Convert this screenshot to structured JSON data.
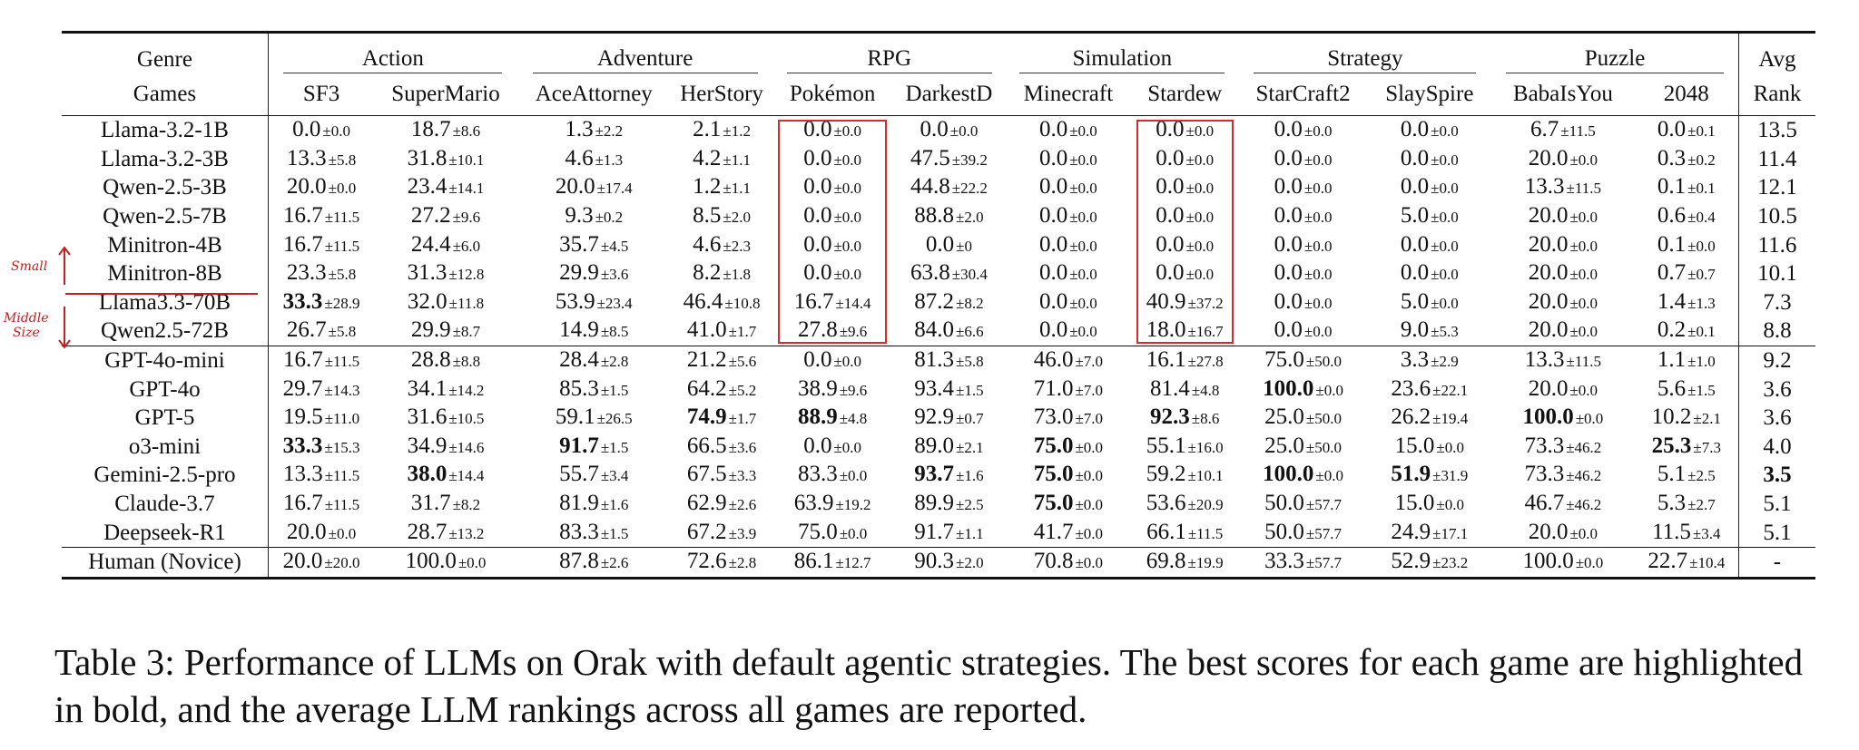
{
  "header": {
    "genre_label": "Genre",
    "games_label": "Games",
    "avg_label": "Avg",
    "rank_label": "Rank",
    "genres": [
      "Action",
      "Adventure",
      "RPG",
      "Simulation",
      "Strategy",
      "Puzzle"
    ],
    "games": [
      "SF3",
      "SuperMario",
      "AceAttorney",
      "HerStory",
      "Pokémon",
      "DarkestD",
      "Minecraft",
      "Stardew",
      "StarCraft2",
      "SlaySpire",
      "BabaIsYou",
      "2048"
    ]
  },
  "groups": [
    {
      "rows": [
        {
          "model": "Llama-3.2-1B",
          "cells": [
            [
              "0.0",
              "±0.0"
            ],
            [
              "18.7",
              "±8.6"
            ],
            [
              "1.3",
              "±2.2"
            ],
            [
              "2.1",
              "±1.2"
            ],
            [
              "0.0",
              "±0.0"
            ],
            [
              "0.0",
              "±0.0"
            ],
            [
              "0.0",
              "±0.0"
            ],
            [
              "0.0",
              "±0.0"
            ],
            [
              "0.0",
              "±0.0"
            ],
            [
              "0.0",
              "±0.0"
            ],
            [
              "6.7",
              "±11.5"
            ],
            [
              "0.0",
              "±0.1"
            ]
          ],
          "rank": "13.5"
        },
        {
          "model": "Llama-3.2-3B",
          "cells": [
            [
              "13.3",
              "±5.8"
            ],
            [
              "31.8",
              "±10.1"
            ],
            [
              "4.6",
              "±1.3"
            ],
            [
              "4.2",
              "±1.1"
            ],
            [
              "0.0",
              "±0.0"
            ],
            [
              "47.5",
              "±39.2"
            ],
            [
              "0.0",
              "±0.0"
            ],
            [
              "0.0",
              "±0.0"
            ],
            [
              "0.0",
              "±0.0"
            ],
            [
              "0.0",
              "±0.0"
            ],
            [
              "20.0",
              "±0.0"
            ],
            [
              "0.3",
              "±0.2"
            ]
          ],
          "rank": "11.4"
        },
        {
          "model": "Qwen-2.5-3B",
          "cells": [
            [
              "20.0",
              "±0.0"
            ],
            [
              "23.4",
              "±14.1"
            ],
            [
              "20.0",
              "±17.4"
            ],
            [
              "1.2",
              "±1.1"
            ],
            [
              "0.0",
              "±0.0"
            ],
            [
              "44.8",
              "±22.2"
            ],
            [
              "0.0",
              "±0.0"
            ],
            [
              "0.0",
              "±0.0"
            ],
            [
              "0.0",
              "±0.0"
            ],
            [
              "0.0",
              "±0.0"
            ],
            [
              "13.3",
              "±11.5"
            ],
            [
              "0.1",
              "±0.1"
            ]
          ],
          "rank": "12.1"
        },
        {
          "model": "Qwen-2.5-7B",
          "cells": [
            [
              "16.7",
              "±11.5"
            ],
            [
              "27.2",
              "±9.6"
            ],
            [
              "9.3",
              "±0.2"
            ],
            [
              "8.5",
              "±2.0"
            ],
            [
              "0.0",
              "±0.0"
            ],
            [
              "88.8",
              "±2.0"
            ],
            [
              "0.0",
              "±0.0"
            ],
            [
              "0.0",
              "±0.0"
            ],
            [
              "0.0",
              "±0.0"
            ],
            [
              "5.0",
              "±0.0"
            ],
            [
              "20.0",
              "±0.0"
            ],
            [
              "0.6",
              "±0.4"
            ]
          ],
          "rank": "10.5"
        },
        {
          "model": "Minitron-4B",
          "cells": [
            [
              "16.7",
              "±11.5"
            ],
            [
              "24.4",
              "±6.0"
            ],
            [
              "35.7",
              "±4.5"
            ],
            [
              "4.6",
              "±2.3"
            ],
            [
              "0.0",
              "±0.0"
            ],
            [
              "0.0",
              "±0"
            ],
            [
              "0.0",
              "±0.0"
            ],
            [
              "0.0",
              "±0.0"
            ],
            [
              "0.0",
              "±0.0"
            ],
            [
              "0.0",
              "±0.0"
            ],
            [
              "20.0",
              "±0.0"
            ],
            [
              "0.1",
              "±0.0"
            ]
          ],
          "rank": "11.6"
        },
        {
          "model": "Minitron-8B",
          "cells": [
            [
              "23.3",
              "±5.8"
            ],
            [
              "31.3",
              "±12.8"
            ],
            [
              "29.9",
              "±3.6"
            ],
            [
              "8.2",
              "±1.8"
            ],
            [
              "0.0",
              "±0.0"
            ],
            [
              "63.8",
              "±30.4"
            ],
            [
              "0.0",
              "±0.0"
            ],
            [
              "0.0",
              "±0.0"
            ],
            [
              "0.0",
              "±0.0"
            ],
            [
              "0.0",
              "±0.0"
            ],
            [
              "20.0",
              "±0.0"
            ],
            [
              "0.7",
              "±0.7"
            ]
          ],
          "rank": "10.1"
        },
        {
          "model": "Llama3.3-70B",
          "cells": [
            [
              "33.3",
              "±28.9"
            ],
            [
              "32.0",
              "±11.8"
            ],
            [
              "53.9",
              "±23.4"
            ],
            [
              "46.4",
              "±10.8"
            ],
            [
              "16.7",
              "±14.4"
            ],
            [
              "87.2",
              "±8.2"
            ],
            [
              "0.0",
              "±0.0"
            ],
            [
              "40.9",
              "±37.2"
            ],
            [
              "0.0",
              "±0.0"
            ],
            [
              "5.0",
              "±0.0"
            ],
            [
              "20.0",
              "±0.0"
            ],
            [
              "1.4",
              "±1.3"
            ]
          ],
          "rank": "7.3"
        },
        {
          "model": "Qwen2.5-72B",
          "cells": [
            [
              "26.7",
              "±5.8"
            ],
            [
              "29.9",
              "±8.7"
            ],
            [
              "14.9",
              "±8.5"
            ],
            [
              "41.0",
              "±1.7"
            ],
            [
              "27.8",
              "±9.6"
            ],
            [
              "84.0",
              "±6.6"
            ],
            [
              "0.0",
              "±0.0"
            ],
            [
              "18.0",
              "±16.7"
            ],
            [
              "0.0",
              "±0.0"
            ],
            [
              "9.0",
              "±5.3"
            ],
            [
              "20.0",
              "±0.0"
            ],
            [
              "0.2",
              "±0.1"
            ]
          ],
          "rank": "8.8"
        }
      ]
    },
    {
      "rows": [
        {
          "model": "GPT-4o-mini",
          "cells": [
            [
              "16.7",
              "±11.5"
            ],
            [
              "28.8",
              "±8.8"
            ],
            [
              "28.4",
              "±2.8"
            ],
            [
              "21.2",
              "±5.6"
            ],
            [
              "0.0",
              "±0.0"
            ],
            [
              "81.3",
              "±5.8"
            ],
            [
              "46.0",
              "±7.0"
            ],
            [
              "16.1",
              "±27.8"
            ],
            [
              "75.0",
              "±50.0"
            ],
            [
              "3.3",
              "±2.9"
            ],
            [
              "13.3",
              "±11.5"
            ],
            [
              "1.1",
              "±1.0"
            ]
          ],
          "rank": "9.2"
        },
        {
          "model": "GPT-4o",
          "cells": [
            [
              "29.7",
              "±14.3"
            ],
            [
              "34.1",
              "±14.2"
            ],
            [
              "85.3",
              "±1.5"
            ],
            [
              "64.2",
              "±5.2"
            ],
            [
              "38.9",
              "±9.6"
            ],
            [
              "93.4",
              "±1.5"
            ],
            [
              "71.0",
              "±7.0"
            ],
            [
              "81.4",
              "±4.8"
            ],
            [
              "100.0",
              "±0.0"
            ],
            [
              "23.6",
              "±22.1"
            ],
            [
              "20.0",
              "±0.0"
            ],
            [
              "5.6",
              "±1.5"
            ]
          ],
          "rank": "3.6"
        },
        {
          "model": "GPT-5",
          "cells": [
            [
              "19.5",
              "±11.0"
            ],
            [
              "31.6",
              "±10.5"
            ],
            [
              "59.1",
              "±26.5"
            ],
            [
              "74.9",
              "±1.7"
            ],
            [
              "88.9",
              "±4.8"
            ],
            [
              "92.9",
              "±0.7"
            ],
            [
              "73.0",
              "±7.0"
            ],
            [
              "92.3",
              "±8.6"
            ],
            [
              "25.0",
              "±50.0"
            ],
            [
              "26.2",
              "±19.4"
            ],
            [
              "100.0",
              "±0.0"
            ],
            [
              "10.2",
              "±2.1"
            ]
          ],
          "rank": "3.6"
        },
        {
          "model": "o3-mini",
          "cells": [
            [
              "33.3",
              "±15.3"
            ],
            [
              "34.9",
              "±14.6"
            ],
            [
              "91.7",
              "±1.5"
            ],
            [
              "66.5",
              "±3.6"
            ],
            [
              "0.0",
              "±0.0"
            ],
            [
              "89.0",
              "±2.1"
            ],
            [
              "75.0",
              "±0.0"
            ],
            [
              "55.1",
              "±16.0"
            ],
            [
              "25.0",
              "±50.0"
            ],
            [
              "15.0",
              "±0.0"
            ],
            [
              "73.3",
              "±46.2"
            ],
            [
              "25.3",
              "±7.3"
            ]
          ],
          "rank": "4.0"
        },
        {
          "model": "Gemini-2.5-pro",
          "cells": [
            [
              "13.3",
              "±11.5"
            ],
            [
              "38.0",
              "±14.4"
            ],
            [
              "55.7",
              "±3.4"
            ],
            [
              "67.5",
              "±3.3"
            ],
            [
              "83.3",
              "±0.0"
            ],
            [
              "93.7",
              "±1.6"
            ],
            [
              "75.0",
              "±0.0"
            ],
            [
              "59.2",
              "±10.1"
            ],
            [
              "100.0",
              "±0.0"
            ],
            [
              "51.9",
              "±31.9"
            ],
            [
              "73.3",
              "±46.2"
            ],
            [
              "5.1",
              "±2.5"
            ]
          ],
          "rank": "3.5"
        },
        {
          "model": "Claude-3.7",
          "cells": [
            [
              "16.7",
              "±11.5"
            ],
            [
              "31.7",
              "±8.2"
            ],
            [
              "81.9",
              "±1.6"
            ],
            [
              "62.9",
              "±2.6"
            ],
            [
              "63.9",
              "±19.2"
            ],
            [
              "89.9",
              "±2.5"
            ],
            [
              "75.0",
              "±0.0"
            ],
            [
              "53.6",
              "±20.9"
            ],
            [
              "50.0",
              "±57.7"
            ],
            [
              "15.0",
              "±0.0"
            ],
            [
              "46.7",
              "±46.2"
            ],
            [
              "5.3",
              "±2.7"
            ]
          ],
          "rank": "5.1"
        },
        {
          "model": "Deepseek-R1",
          "cells": [
            [
              "20.0",
              "±0.0"
            ],
            [
              "28.7",
              "±13.2"
            ],
            [
              "83.3",
              "±1.5"
            ],
            [
              "67.2",
              "±3.9"
            ],
            [
              "75.0",
              "±0.0"
            ],
            [
              "91.7",
              "±1.1"
            ],
            [
              "41.7",
              "±0.0"
            ],
            [
              "66.1",
              "±11.5"
            ],
            [
              "50.0",
              "±57.7"
            ],
            [
              "24.9",
              "±17.1"
            ],
            [
              "20.0",
              "±0.0"
            ],
            [
              "11.5",
              "±3.4"
            ]
          ],
          "rank": "5.1"
        }
      ]
    },
    {
      "rows": [
        {
          "model": "Human (Novice)",
          "cells": [
            [
              "20.0",
              "±20.0"
            ],
            [
              "100.0",
              "±0.0"
            ],
            [
              "87.8",
              "±2.6"
            ],
            [
              "72.6",
              "±2.8"
            ],
            [
              "86.1",
              "±12.7"
            ],
            [
              "90.3",
              "±2.0"
            ],
            [
              "70.8",
              "±0.0"
            ],
            [
              "69.8",
              "±19.9"
            ],
            [
              "33.3",
              "±57.7"
            ],
            [
              "52.9",
              "±23.2"
            ],
            [
              "100.0",
              "±0.0"
            ],
            [
              "22.7",
              "±10.4"
            ]
          ],
          "rank": "-"
        }
      ]
    }
  ],
  "bold": [
    {
      "model": "Llama3.3-70B",
      "col": 0
    },
    {
      "model": "o3-mini",
      "col": 0
    },
    {
      "model": "Gemini-2.5-pro",
      "col": 1
    },
    {
      "model": "o3-mini",
      "col": 2
    },
    {
      "model": "GPT-5",
      "col": 3
    },
    {
      "model": "GPT-5",
      "col": 4
    },
    {
      "model": "Gemini-2.5-pro",
      "col": 5
    },
    {
      "model": "o3-mini",
      "col": 6
    },
    {
      "model": "Gemini-2.5-pro",
      "col": 6
    },
    {
      "model": "Claude-3.7",
      "col": 6
    },
    {
      "model": "GPT-5",
      "col": 7
    },
    {
      "model": "GPT-4o",
      "col": 8
    },
    {
      "model": "Gemini-2.5-pro",
      "col": 8
    },
    {
      "model": "Gemini-2.5-pro",
      "col": 9
    },
    {
      "model": "GPT-5",
      "col": 10
    },
    {
      "model": "o3-mini",
      "col": 11
    },
    {
      "model": "Gemini-2.5-pro",
      "col": "rank"
    }
  ],
  "annotations": {
    "small": "Small",
    "middle": "Middle",
    "size": "Size",
    "color": "#c42020"
  },
  "caption": "Table 3: Performance of LLMs on Orak with default agentic strategies. The best scores for each game are highlighted in bold, and the average LLM rankings across all games are reported."
}
